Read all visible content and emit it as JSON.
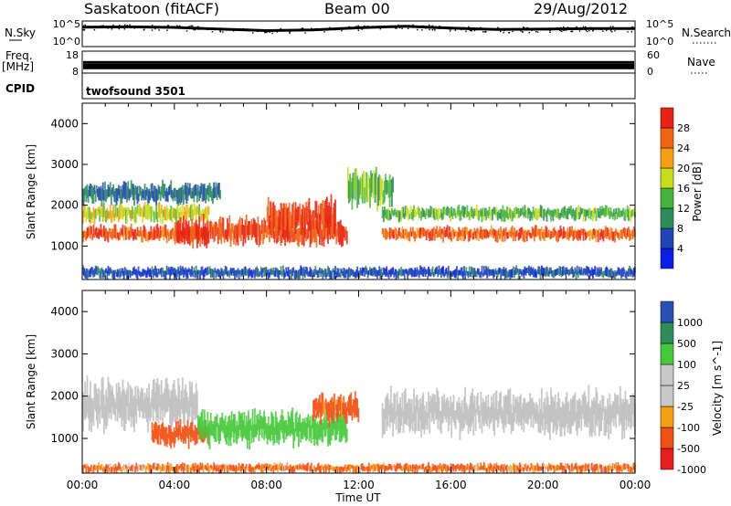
{
  "header": {
    "station": "Saskatoon (fitACF)",
    "beam": "Beam 00",
    "date": "29/Aug/2012"
  },
  "strip": {
    "nsky_label": "N.Sky",
    "nsky_ticks": [
      "10^5",
      "10^0"
    ],
    "nsearch_label": "N.Search",
    "freq_label": "Freq.",
    "freq_unit": "[MHz]",
    "freq_ticks": [
      "18",
      "8"
    ],
    "nave_ticks": [
      "60",
      "0"
    ],
    "nave_label": "Nave",
    "cpid_label": "CPID",
    "cpid_value": "twofsound 3501"
  },
  "colors": {
    "power_scale": [
      "#0a1ee6",
      "#1e46b4",
      "#2d8c5a",
      "#46b43c",
      "#c8dc1e",
      "#f5a014",
      "#f06414",
      "#e62314"
    ],
    "velocity_scale": [
      "#e61e1e",
      "#f05014",
      "#f5a014",
      "#c8c8c8",
      "#c8c8c8",
      "#46c83c",
      "#2d8c5a",
      "#2850b4"
    ],
    "ground_scatter": "#bebebe"
  },
  "chart_data": [
    {
      "type": "line",
      "title": "N.Sky / N.Search",
      "y_scale": "log",
      "ylim": [
        1,
        100000
      ],
      "x": [
        "00:00",
        "02:00",
        "04:00",
        "06:00",
        "08:00",
        "10:00",
        "12:00",
        "14:00",
        "16:00",
        "18:00",
        "20:00",
        "22:00",
        "24:00"
      ],
      "series": [
        {
          "name": "N.Sky",
          "values": [
            8000,
            9000,
            7000,
            3000,
            1500,
            2000,
            6000,
            12000,
            5000,
            2500,
            3000,
            4000,
            4000
          ]
        }
      ]
    },
    {
      "type": "line",
      "title": "Freq. [MHz] / Nave",
      "ylim": [
        8,
        18
      ],
      "y2lim": [
        0,
        60
      ],
      "x": [
        "00:00",
        "06:00",
        "12:00",
        "18:00",
        "24:00"
      ],
      "series": [
        {
          "name": "Freq.",
          "values": [
            11,
            11,
            11,
            11,
            11
          ]
        }
      ]
    },
    {
      "type": "heatmap",
      "title": "Power [dB]",
      "xlabel": "Time UT",
      "ylabel": "Slant Range [km]",
      "xlim": [
        0,
        24
      ],
      "ylim": [
        180,
        4500
      ],
      "x_ticks": [
        "00:00",
        "04:00",
        "08:00",
        "12:00",
        "16:00",
        "20:00",
        "00:00"
      ],
      "y_ticks": [
        1000,
        2000,
        3000,
        4000
      ],
      "colorbar_label": "Power [dB]",
      "colorbar_range": [
        0,
        32
      ],
      "colorbar_ticks": [
        4,
        8,
        12,
        16,
        20,
        24,
        28
      ],
      "bands": [
        {
          "t_start": 0,
          "t_end": 5.5,
          "range_center": 1300,
          "range_width": 350,
          "value": 27
        },
        {
          "t_start": 0,
          "t_end": 5.5,
          "range_center": 1800,
          "range_width": 400,
          "value": 18
        },
        {
          "t_start": 0,
          "t_end": 6,
          "range_center": 2300,
          "range_width": 450,
          "value": 8
        },
        {
          "t_start": 4,
          "t_end": 11.5,
          "range_center": 1350,
          "range_width": 600,
          "value": 28
        },
        {
          "t_start": 8,
          "t_end": 11,
          "range_center": 1700,
          "range_width": 800,
          "value": 29
        },
        {
          "t_start": 11.5,
          "t_end": 13.5,
          "range_center": 2400,
          "range_width": 800,
          "value": 14
        },
        {
          "t_start": 13,
          "t_end": 24,
          "range_center": 1300,
          "range_width": 300,
          "value": 27
        },
        {
          "t_start": 13,
          "t_end": 24,
          "range_center": 1800,
          "range_width": 300,
          "value": 14
        },
        {
          "t_start": 0,
          "t_end": 24,
          "range_center": 350,
          "range_width": 250,
          "value": 6
        }
      ]
    },
    {
      "type": "heatmap",
      "title": "Velocity [m s^-1]",
      "xlabel": "Time UT",
      "ylabel": "Slant Range [km]",
      "xlim": [
        0,
        24
      ],
      "ylim": [
        180,
        4500
      ],
      "x_ticks": [
        "00:00",
        "04:00",
        "08:00",
        "12:00",
        "16:00",
        "20:00",
        "00:00"
      ],
      "y_ticks": [
        1000,
        2000,
        3000,
        4000
      ],
      "colorbar_label": "Velocity [m s^-1]",
      "colorbar_ticks": [
        1000,
        500,
        100,
        25,
        -25,
        -100,
        -500,
        -1000
      ],
      "bands": [
        {
          "t_start": 0,
          "t_end": 5,
          "range_center": 1800,
          "range_width": 1000,
          "value": 0,
          "ground_scatter": true
        },
        {
          "t_start": 3,
          "t_end": 5.5,
          "range_center": 1100,
          "range_width": 500,
          "value": -300
        },
        {
          "t_start": 5,
          "t_end": 11.5,
          "range_center": 1250,
          "range_width": 700,
          "value": 350
        },
        {
          "t_start": 10,
          "t_end": 12,
          "range_center": 1700,
          "range_width": 600,
          "value": -200
        },
        {
          "t_start": 13,
          "t_end": 24,
          "range_center": 1600,
          "range_width": 900,
          "value": 0,
          "ground_scatter": true
        },
        {
          "t_start": 0,
          "t_end": 24,
          "range_center": 300,
          "range_width": 200,
          "value": -150
        }
      ]
    }
  ]
}
